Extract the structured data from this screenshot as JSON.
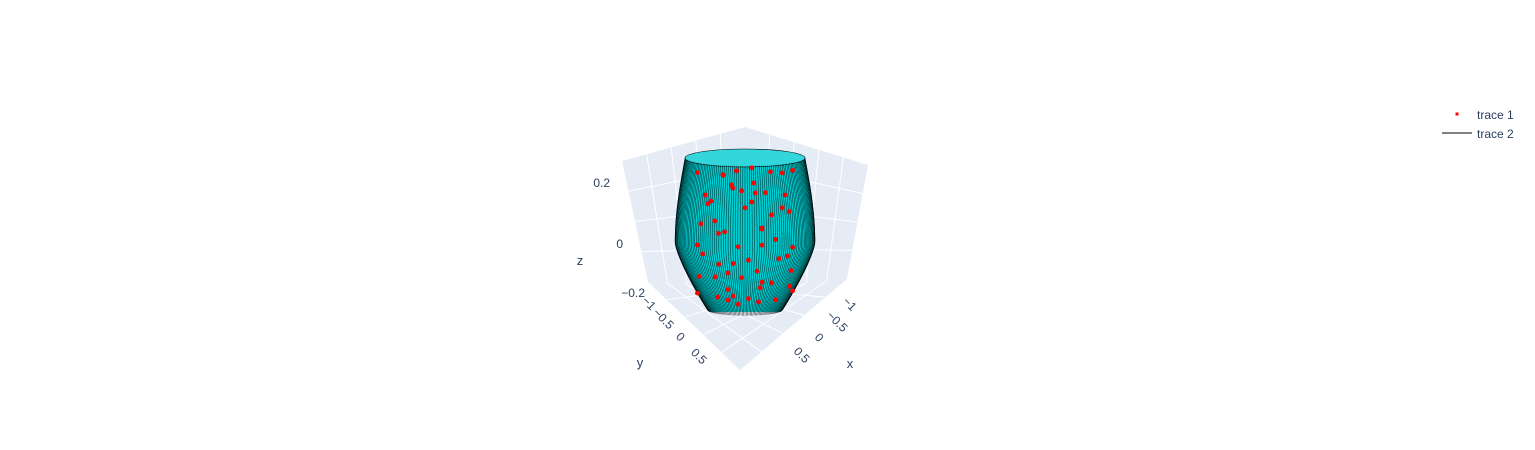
{
  "chart_data": {
    "type": "scatter3d",
    "background_color": "#E5ECF6",
    "grid": true,
    "legend_placement": "top-right",
    "axes": {
      "x": {
        "title": "x",
        "range": [
          -1,
          1
        ],
        "ticks": [
          "−1",
          "−0.5",
          "0",
          "0.5"
        ]
      },
      "y": {
        "title": "y",
        "range": [
          -1,
          1
        ],
        "ticks": [
          "−1",
          "−0.5",
          "0",
          "0.5"
        ]
      },
      "z": {
        "title": "z",
        "range": [
          -0.25,
          0.25
        ],
        "ticks": [
          "−0.2",
          "0",
          "0.2"
        ]
      }
    },
    "series": [
      {
        "name": "trace 1",
        "mode": "markers",
        "color": "#FF0000",
        "marker_size": 3
      },
      {
        "name": "trace 2",
        "mode": "lines",
        "color": "#000000",
        "surface_color": "#00CED1"
      }
    ],
    "trace1_points": [
      [
        0.95,
        0.2,
        0.22
      ],
      [
        0.3,
        0.95,
        0.21
      ],
      [
        -0.8,
        0.6,
        0.2
      ],
      [
        -0.6,
        -0.8,
        0.2
      ],
      [
        0.7,
        -0.7,
        0.21
      ],
      [
        0.1,
        -0.99,
        0.19
      ],
      [
        -0.95,
        -0.3,
        0.18
      ],
      [
        0.5,
        0.86,
        0.17
      ],
      [
        0.2,
        0.3,
        0.15
      ],
      [
        -0.3,
        0.1,
        0.16
      ],
      [
        0.4,
        -0.2,
        0.14
      ],
      [
        -0.1,
        -0.4,
        0.13
      ],
      [
        0.6,
        0.4,
        0.12
      ],
      [
        -0.5,
        0.5,
        0.11
      ],
      [
        0.99,
        -0.1,
        0.1
      ],
      [
        -0.99,
        0.1,
        0.09
      ],
      [
        0.8,
        -0.5,
        0.08
      ],
      [
        -0.7,
        -0.7,
        0.07
      ],
      [
        0.1,
        0.99,
        0.06
      ],
      [
        -0.2,
        -0.98,
        0.05
      ],
      [
        0.9,
        0.4,
        0.04
      ],
      [
        -0.9,
        0.4,
        0.03
      ],
      [
        0.3,
        -0.2,
        0.02
      ],
      [
        -0.3,
        0.3,
        0.01
      ],
      [
        0.99,
        0.1,
        0.0
      ],
      [
        -0.98,
        -0.2,
        -0.01
      ],
      [
        0.6,
        0.8,
        -0.02
      ],
      [
        -0.6,
        0.8,
        -0.03
      ],
      [
        0.7,
        -0.7,
        -0.04
      ],
      [
        -0.4,
        -0.9,
        -0.05
      ],
      [
        0.95,
        -0.3,
        -0.06
      ],
      [
        -0.95,
        0.3,
        -0.07
      ],
      [
        0.2,
        0.97,
        -0.08
      ],
      [
        0.0,
        -1.0,
        -0.09
      ],
      [
        0.85,
        0.5,
        -0.1
      ],
      [
        -0.85,
        -0.5,
        -0.11
      ],
      [
        0.5,
        -0.85,
        -0.12
      ],
      [
        -0.5,
        0.85,
        -0.13
      ],
      [
        0.98,
        0.2,
        -0.14
      ],
      [
        -0.98,
        -0.1,
        -0.15
      ],
      [
        0.4,
        0.9,
        -0.16
      ],
      [
        -0.4,
        -0.9,
        -0.17
      ],
      [
        0.75,
        -0.65,
        -0.18
      ],
      [
        -0.75,
        0.65,
        -0.19
      ],
      [
        0.3,
        0.2,
        -0.2
      ],
      [
        -0.2,
        0.3,
        -0.21
      ],
      [
        0.1,
        -0.3,
        -0.22
      ],
      [
        -0.3,
        -0.1,
        -0.23
      ],
      [
        0.9,
        -0.4,
        -0.16
      ],
      [
        -0.9,
        -0.4,
        -0.14
      ],
      [
        0.65,
        0.75,
        -0.12
      ],
      [
        -0.65,
        -0.75,
        -0.1
      ],
      [
        0.2,
        -0.97,
        0.12
      ],
      [
        -0.2,
        0.97,
        0.14
      ],
      [
        0.55,
        0.3,
        0.18
      ],
      [
        -0.45,
        -0.2,
        0.2
      ],
      [
        0.15,
        0.5,
        -0.19
      ],
      [
        -0.35,
        0.45,
        -0.2
      ],
      [
        0.45,
        -0.45,
        -0.21
      ],
      [
        -0.1,
        -0.55,
        -0.18
      ]
    ]
  }
}
